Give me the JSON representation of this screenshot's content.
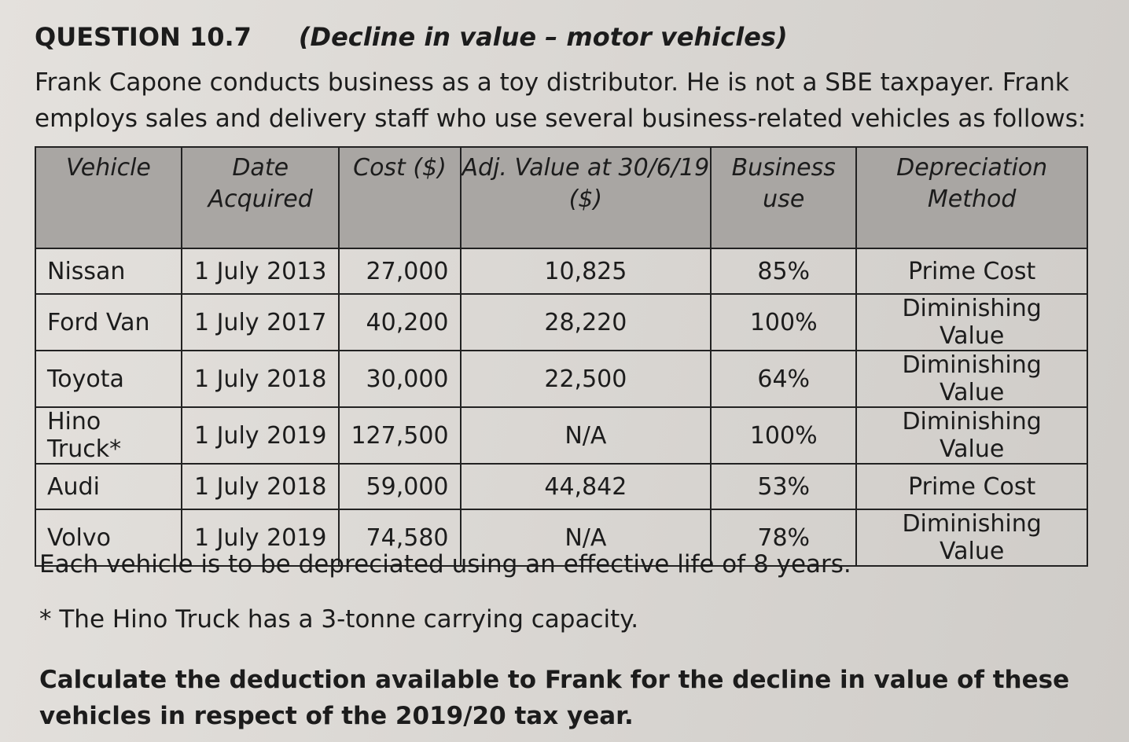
{
  "question": {
    "number": "QUESTION 10.7",
    "subtitle": "(Decline in value – motor vehicles)",
    "intro": "Frank Capone conducts business as a toy distributor. He is not a SBE taxpayer. Frank employs sales and delivery staff who use several business-related vehicles as follows:"
  },
  "table": {
    "header": [
      "Vehicle",
      "Date Acquired",
      "Cost ($)",
      "Adj. Value at 30/6/19 ($)",
      "Business use",
      "Depreciation Method"
    ],
    "rows": [
      [
        "Nissan",
        "1 July 2013",
        "27,000",
        "10,825",
        "85%",
        "Prime Cost"
      ],
      [
        "Ford Van",
        "1 July 2017",
        "40,200",
        "28,220",
        "100%",
        "Diminishing Value"
      ],
      [
        "Toyota",
        "1 July 2018",
        "30,000",
        "22,500",
        "64%",
        "Diminishing Value"
      ],
      [
        "Hino Truck*",
        "1 July 2019",
        "127,500",
        "N/A",
        "100%",
        "Diminishing Value"
      ],
      [
        "Audi",
        "1 July 2018",
        "59,000",
        "44,842",
        "53%",
        "Prime Cost"
      ],
      [
        "Volvo",
        "1 July 2019",
        "74,580",
        "N/A",
        "78%",
        "Diminishing Value"
      ]
    ]
  },
  "notes": [
    "Each vehicle is to be depreciated using an effective life of 8 years.",
    "* The Hino Truck has a 3-tonne carrying capacity."
  ],
  "task": "Calculate the deduction available to Frank for the decline in value of these vehicles in respect of the 2019/20 tax year."
}
